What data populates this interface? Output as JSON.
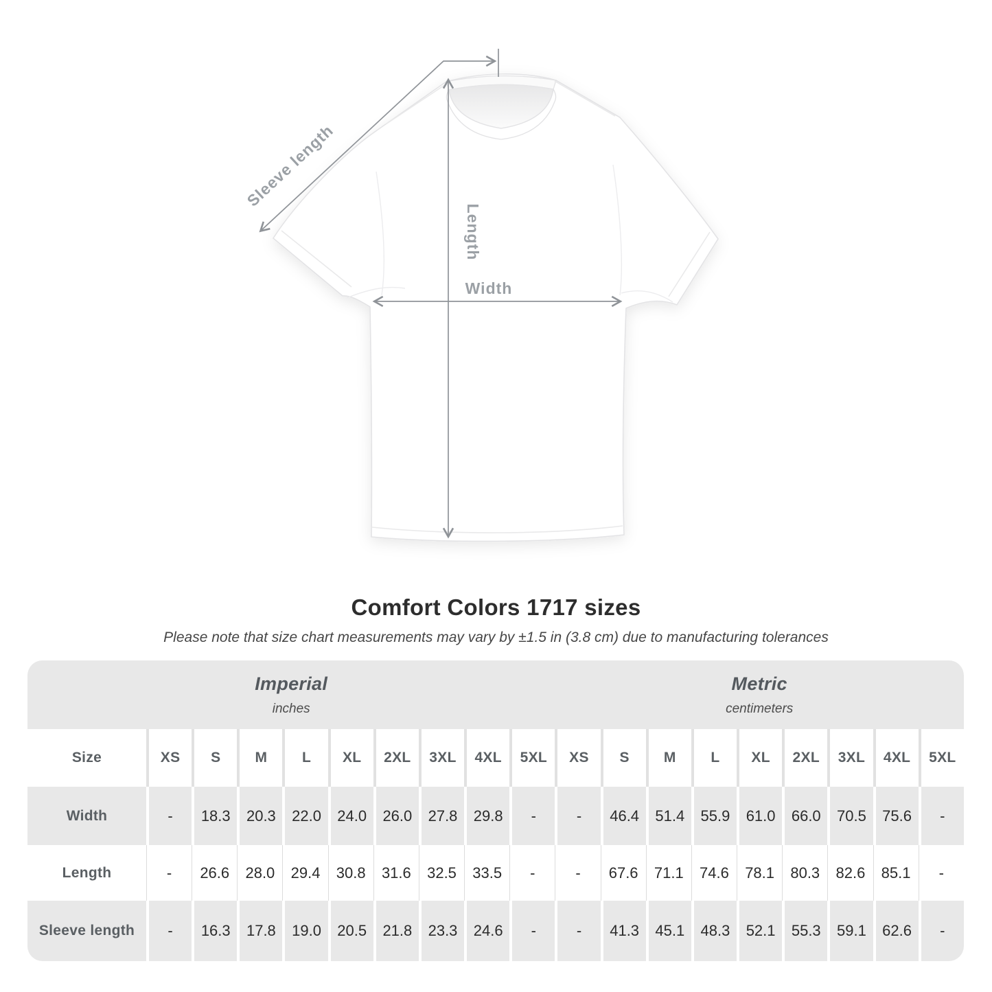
{
  "title": "Comfort Colors 1717 sizes",
  "subtitle": "Please note that size chart measurements may vary by ±1.5 in (3.8 cm) due to manufacturing tolerances",
  "diagram": {
    "sleeve_label": "Sleeve length",
    "length_label": "Length",
    "width_label": "Width"
  },
  "colors": {
    "annotation_line": "#8f9398",
    "annotation_text": "#9ba0a5",
    "band_background": "#e8e8e8",
    "alt_row_background": "#e8e8e8",
    "header_text": "#5a5f63",
    "value_text": "#2b2b2b",
    "title_text": "#2d2d2d"
  },
  "chart_data": {
    "type": "table",
    "corner_label": "Size",
    "sections": [
      {
        "name": "Imperial",
        "unit": "inches",
        "sizes": [
          "XS",
          "S",
          "M",
          "L",
          "XL",
          "2XL",
          "3XL",
          "4XL",
          "5XL"
        ]
      },
      {
        "name": "Metric",
        "unit": "centimeters",
        "sizes": [
          "XS",
          "S",
          "M",
          "L",
          "XL",
          "2XL",
          "3XL",
          "4XL",
          "5XL"
        ]
      }
    ],
    "rows": [
      {
        "label": "Width",
        "imperial": [
          "-",
          "18.3",
          "20.3",
          "22.0",
          "24.0",
          "26.0",
          "27.8",
          "29.8",
          "-"
        ],
        "metric": [
          "-",
          "46.4",
          "51.4",
          "55.9",
          "61.0",
          "66.0",
          "70.5",
          "75.6",
          "-"
        ]
      },
      {
        "label": "Length",
        "imperial": [
          "-",
          "26.6",
          "28.0",
          "29.4",
          "30.8",
          "31.6",
          "32.5",
          "33.5",
          "-"
        ],
        "metric": [
          "-",
          "67.6",
          "71.1",
          "74.6",
          "78.1",
          "80.3",
          "82.6",
          "85.1",
          "-"
        ]
      },
      {
        "label": "Sleeve length",
        "imperial": [
          "-",
          "16.3",
          "17.8",
          "19.0",
          "20.5",
          "21.8",
          "23.3",
          "24.6",
          "-"
        ],
        "metric": [
          "-",
          "41.3",
          "45.1",
          "48.3",
          "52.1",
          "55.3",
          "59.1",
          "62.6",
          "-"
        ]
      }
    ]
  }
}
